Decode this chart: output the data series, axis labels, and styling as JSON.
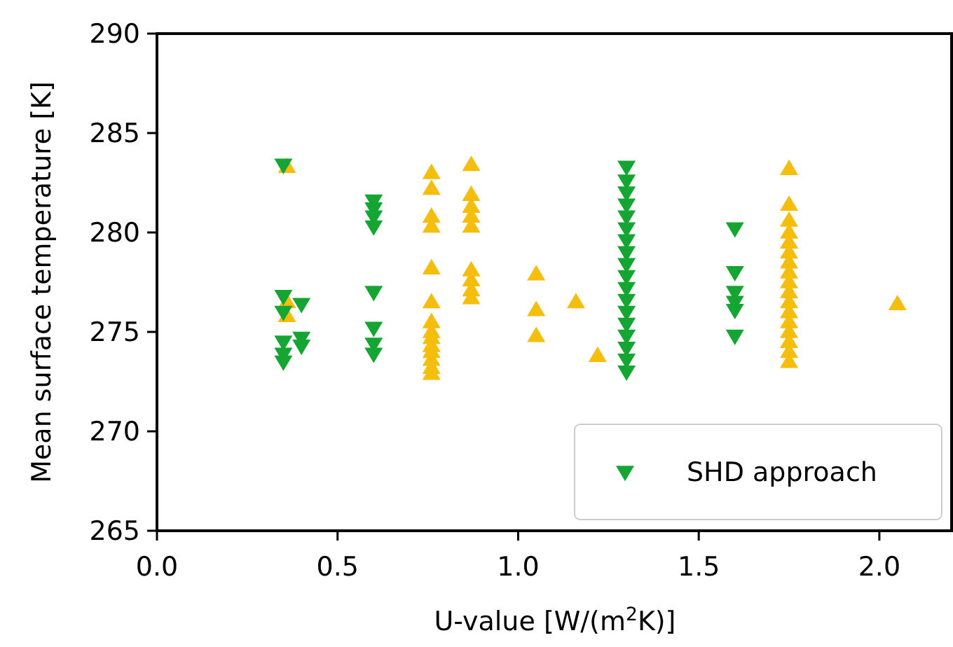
{
  "chart_data": {
    "type": "scatter",
    "xlabel": "U-value [W/(m$^{2}$K)]",
    "ylabel": "Mean surface temperature [K]",
    "xlim": [
      0,
      2.2
    ],
    "ylim": [
      265,
      290
    ],
    "xticks": [
      {
        "value": 0,
        "label": "0.0"
      },
      {
        "value": 0.5,
        "label": "0.5"
      },
      {
        "value": 1,
        "label": "1.0"
      },
      {
        "value": 1.5,
        "label": "1.5"
      },
      {
        "value": 2,
        "label": "2.0"
      }
    ],
    "yticks": [
      265,
      270,
      275,
      280,
      285,
      290
    ],
    "grid": false,
    "legend": "bottom right",
    "series": [
      {
        "color": "#f5bd0c",
        "marker": "triangle",
        "x": [
          0.36,
          0.36,
          0.36,
          0.76,
          0.76,
          0.76,
          0.76,
          0.76,
          0.76,
          0.76,
          0.76,
          0.76,
          0.76,
          0.76,
          0.76,
          0.76,
          0.76,
          0.87,
          0.87,
          0.87,
          0.87,
          0.87,
          0.87,
          0.87,
          0.87,
          0.87,
          1.05,
          1.05,
          1.05,
          1.16,
          1.22,
          1.75,
          1.75,
          1.75,
          1.75,
          1.75,
          1.75,
          1.75,
          1.75,
          1.75,
          1.75,
          1.75,
          1.75,
          1.75,
          1.75,
          1.75,
          1.75,
          1.75,
          2.05
        ],
        "values": [
          283.3,
          276.5,
          275.8,
          283,
          282.2,
          280.8,
          280.3,
          278.2,
          276.5,
          275.5,
          275,
          274.7,
          274.3,
          274,
          273.6,
          273.2,
          272.9,
          283.4,
          281.9,
          281.3,
          280.8,
          280.3,
          278.1,
          277.6,
          277.1,
          276.7,
          277.9,
          276.1,
          274.8,
          276.5,
          273.8,
          283.2,
          281.4,
          280.6,
          280,
          279.5,
          279,
          278.5,
          278,
          277.5,
          277,
          276.5,
          276,
          275.5,
          275,
          274.5,
          274,
          273.5,
          276.4
        ]
      },
      {
        "name": "SHD approach",
        "color": "#14a532",
        "marker": "triangle-down",
        "x": [
          0.35,
          0.35,
          0.35,
          0.35,
          0.35,
          0.35,
          0.4,
          0.4,
          0.4,
          0.6,
          0.6,
          0.6,
          0.6,
          0.6,
          0.6,
          0.6,
          0.6,
          1.3,
          1.3,
          1.3,
          1.3,
          1.3,
          1.3,
          1.3,
          1.3,
          1.3,
          1.3,
          1.3,
          1.3,
          1.3,
          1.3,
          1.3,
          1.3,
          1.3,
          1.3,
          1.6,
          1.6,
          1.6,
          1.6,
          1.6,
          1.6
        ],
        "values": [
          283.4,
          276.8,
          276,
          274.5,
          273.9,
          273.5,
          276.4,
          274.7,
          274.3,
          281.6,
          281.2,
          280.8,
          280.3,
          277,
          275.2,
          274.4,
          273.9,
          283.3,
          282.6,
          282,
          281.4,
          280.8,
          280.2,
          279.6,
          279,
          278.4,
          277.8,
          277.2,
          276.6,
          276,
          275.4,
          274.8,
          274.2,
          273.6,
          273,
          280.2,
          278,
          277,
          276.5,
          276.1,
          274.8
        ]
      }
    ]
  }
}
